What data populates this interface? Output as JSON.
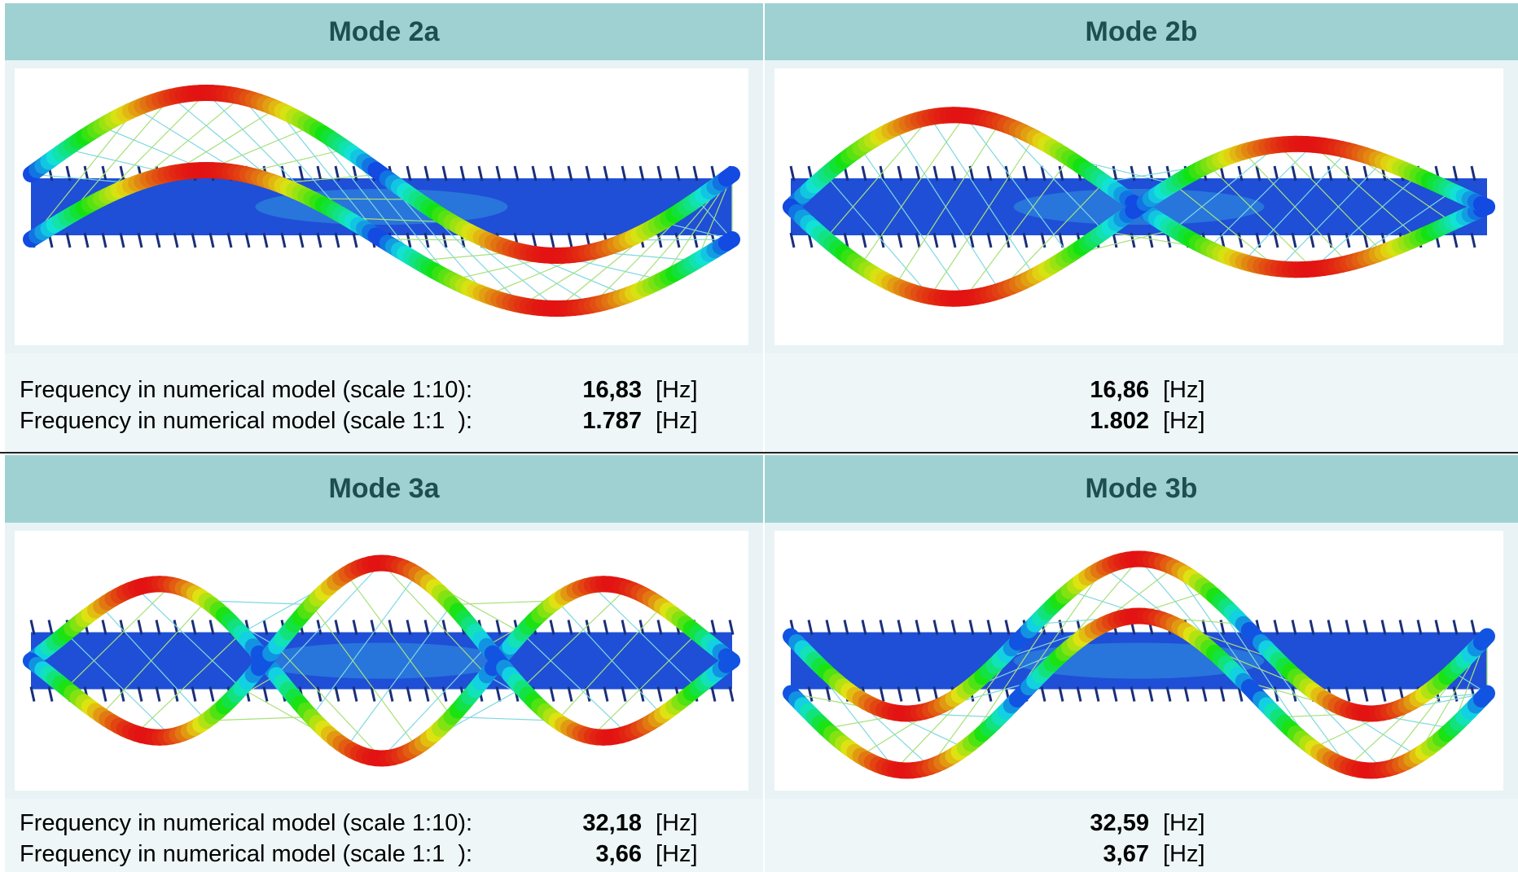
{
  "panels": [
    {
      "title": "Mode 2a",
      "rows": [
        {
          "label": "Frequency in numerical model (scale 1:10):",
          "value": "16,83",
          "unit": "[Hz]"
        },
        {
          "label": "Frequency in numerical model (scale 1:1  ):",
          "value": "1.787",
          "unit": "[Hz]"
        }
      ]
    },
    {
      "title": "Mode 2b",
      "rows": [
        {
          "value": "16,86",
          "unit": "[Hz]"
        },
        {
          "value": "1.802",
          "unit": "[Hz]"
        }
      ]
    },
    {
      "title": "Mode 3a",
      "rows": [
        {
          "label": "Frequency in numerical model (scale 1:10):",
          "value": "32,18",
          "unit": "[Hz]"
        },
        {
          "label": "Frequency in numerical model (scale 1:1  ):",
          "value": "3,66",
          "unit": "[Hz]"
        }
      ]
    },
    {
      "title": "Mode 3b",
      "rows": [
        {
          "value": "32,59",
          "unit": "[Hz]"
        },
        {
          "value": "3,67",
          "unit": "[Hz]"
        }
      ]
    }
  ]
}
